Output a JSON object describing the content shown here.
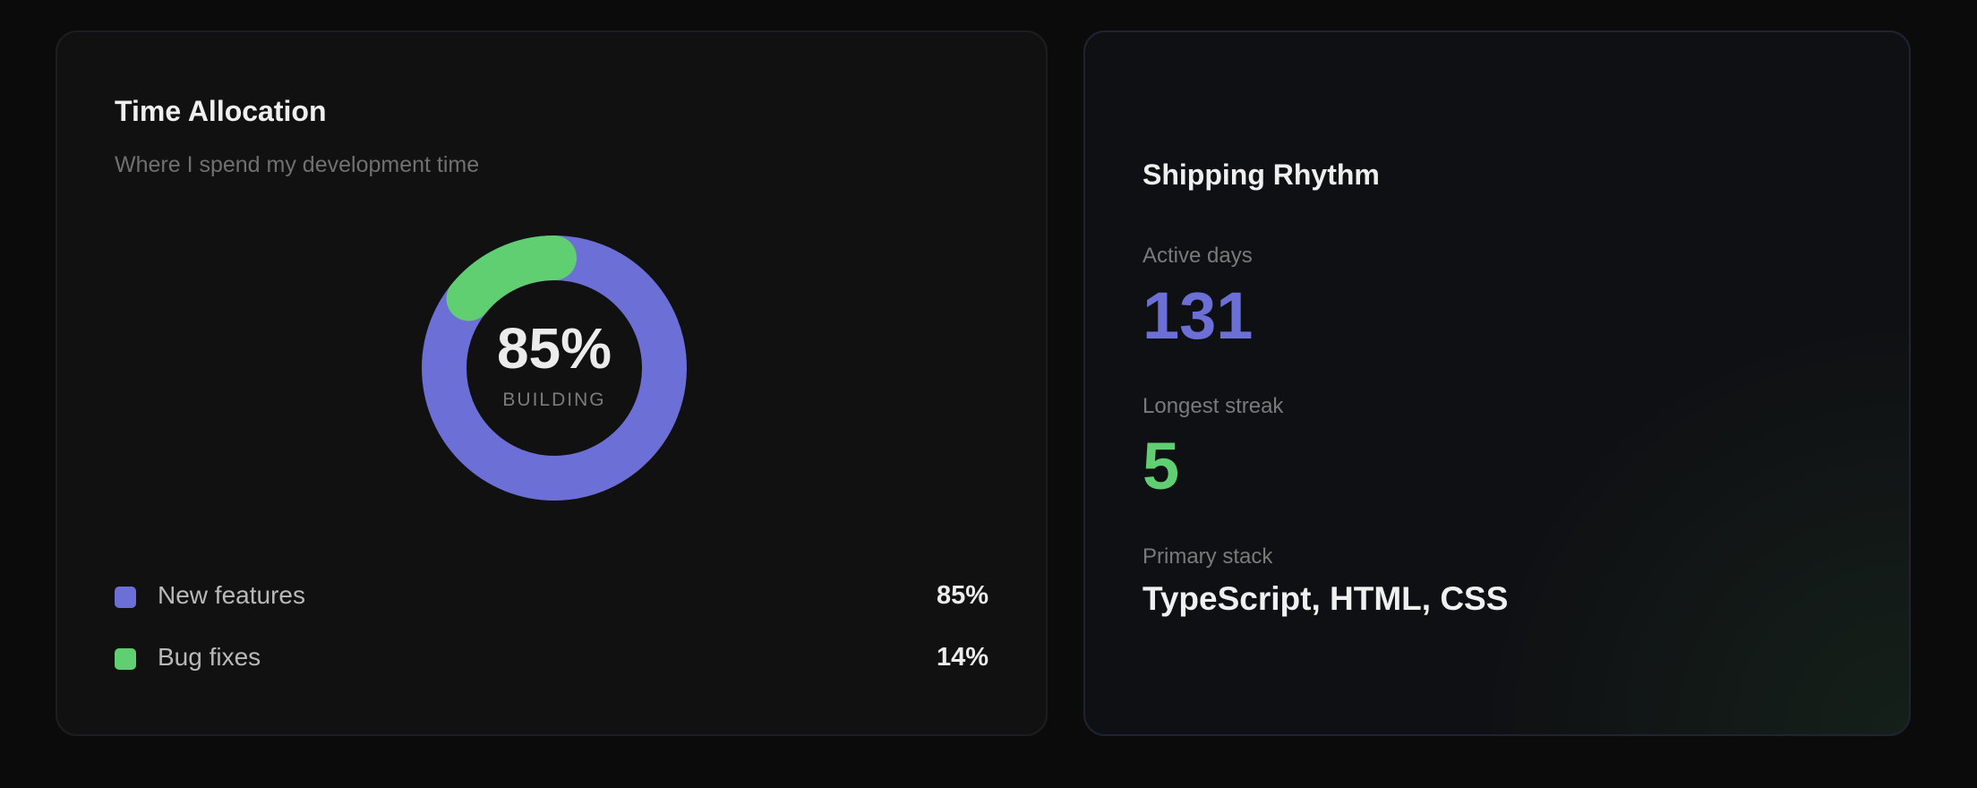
{
  "time_allocation": {
    "title": "Time Allocation",
    "subtitle": "Where I spend my development time",
    "donut": {
      "center_value": "85%",
      "center_label": "BUILDING"
    },
    "legend": [
      {
        "name": "New features",
        "value": "85%",
        "color": "#6b6fd6"
      },
      {
        "name": "Bug fixes",
        "value": "14%",
        "color": "#5fcf72"
      }
    ]
  },
  "chart_data": {
    "type": "pie",
    "categories": [
      "New features",
      "Bug fixes"
    ],
    "values": [
      85,
      14
    ],
    "colors": [
      "#6b6fd6",
      "#5fcf72"
    ],
    "title": "Time Allocation",
    "subtitle": "Where I spend my development time"
  },
  "shipping_rhythm": {
    "title": "Shipping Rhythm",
    "active_days_label": "Active days",
    "active_days_value": "131",
    "active_days_color": "#6b6fd6",
    "longest_streak_label": "Longest streak",
    "longest_streak_value": "5",
    "longest_streak_color": "#5fcf72",
    "primary_stack_label": "Primary stack",
    "primary_stack_value": "TypeScript, HTML, CSS"
  }
}
